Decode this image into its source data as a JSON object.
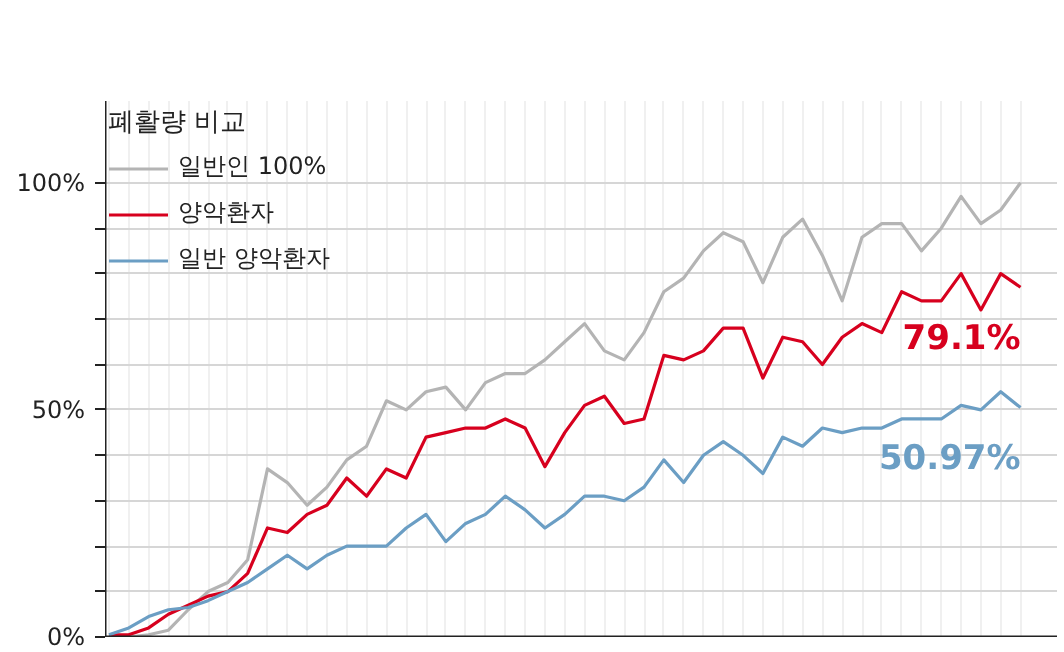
{
  "chart_data": {
    "type": "line",
    "legend_title": "폐활량 비교",
    "categories": [
      null,
      null,
      null,
      null,
      null,
      null,
      null,
      null,
      null,
      null,
      null,
      null,
      null,
      null,
      null,
      null,
      null,
      null,
      null,
      null,
      null,
      null,
      null,
      null,
      null,
      null,
      null,
      null,
      null,
      null,
      null,
      null,
      null,
      null,
      null,
      null,
      null,
      null,
      null,
      null,
      null,
      null,
      null,
      null,
      null,
      null,
      null
    ],
    "series": [
      {
        "name": "일반인 100%",
        "color": "#b4b4b4",
        "values": [
          0,
          0,
          0.5,
          1.5,
          6,
          10,
          12,
          17,
          37,
          34,
          29,
          33,
          39,
          42,
          52,
          50,
          54,
          55,
          50,
          56,
          58,
          58,
          61,
          65,
          69,
          63,
          61,
          67,
          76,
          79,
          85,
          89,
          87,
          78,
          88,
          92,
          84,
          74,
          88,
          91,
          91,
          85,
          90,
          97,
          91,
          94,
          100
        ]
      },
      {
        "name": "양악환자",
        "color": "#d7001e",
        "values": [
          0.5,
          0.5,
          2,
          5,
          7,
          9,
          10,
          14,
          24,
          23,
          27,
          29,
          35,
          31,
          37,
          35,
          44,
          45,
          46,
          46,
          48,
          46,
          37.5,
          45,
          51,
          53,
          47,
          48,
          62,
          61,
          63,
          68,
          68,
          57,
          66,
          65,
          60,
          66,
          69,
          67,
          76,
          74,
          74,
          80,
          72,
          80,
          77
        ]
      },
      {
        "name": "일반 양악환자",
        "color": "#6b9ec4",
        "values": [
          0.5,
          2,
          4.5,
          6,
          6.5,
          8,
          10,
          12,
          15,
          18,
          15,
          18,
          20,
          20,
          20,
          24,
          27,
          21,
          25,
          27,
          31,
          28,
          24,
          27,
          31,
          31,
          30,
          33,
          39,
          34,
          40,
          43,
          40,
          36,
          44,
          42,
          46,
          45,
          46,
          46,
          48,
          48,
          48,
          51,
          50,
          54,
          50.5
        ]
      }
    ],
    "annotations": [
      "79.1%",
      "50.97%"
    ],
    "ylim": [
      0,
      118
    ],
    "yticks": [
      {
        "value": 0,
        "label": "0%"
      },
      {
        "value": 10,
        "label": null
      },
      {
        "value": 20,
        "label": null
      },
      {
        "value": 30,
        "label": null
      },
      {
        "value": 40,
        "label": null
      },
      {
        "value": 50,
        "label": "50%"
      },
      {
        "value": 60,
        "label": null
      },
      {
        "value": 70,
        "label": null
      },
      {
        "value": 80,
        "label": null
      },
      {
        "value": 90,
        "label": null
      },
      {
        "value": 100,
        "label": "100%"
      }
    ],
    "grid": true,
    "legend": "top left",
    "tick_labels": "y",
    "line_style": "solid",
    "marker": "none"
  }
}
